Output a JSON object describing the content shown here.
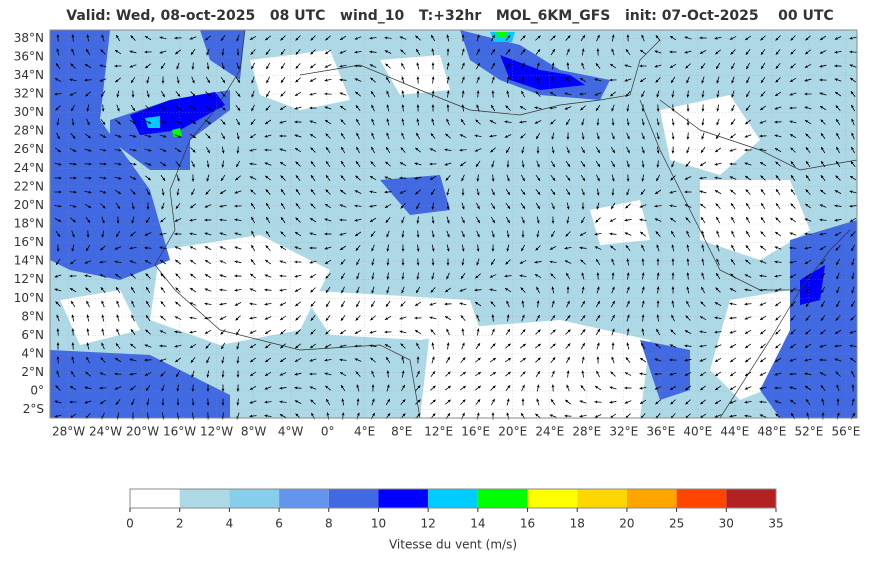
{
  "header": {
    "title": "Valid: Wed, 08-oct-2025   08 UTC   wind_10   T:+32hr   MOL_6KM_GFS   init: 07-Oct-2025    00 UTC"
  },
  "map": {
    "lonlim": [
      -30,
      57.2
    ],
    "latlim": [
      -2.9,
      38.9
    ],
    "lat_ticks": [
      {
        "value": 38,
        "label": "38°N"
      },
      {
        "value": 36,
        "label": "36°N"
      },
      {
        "value": 34,
        "label": "34°N"
      },
      {
        "value": 32,
        "label": "32°N"
      },
      {
        "value": 30,
        "label": "30°N"
      },
      {
        "value": 28,
        "label": "28°N"
      },
      {
        "value": 26,
        "label": "26°N"
      },
      {
        "value": 24,
        "label": "24°N"
      },
      {
        "value": 22,
        "label": "22°N"
      },
      {
        "value": 20,
        "label": "20°N"
      },
      {
        "value": 18,
        "label": "18°N"
      },
      {
        "value": 16,
        "label": "16°N"
      },
      {
        "value": 14,
        "label": "14°N"
      },
      {
        "value": 12,
        "label": "12°N"
      },
      {
        "value": 10,
        "label": "10°N"
      },
      {
        "value": 8,
        "label": "8°N"
      },
      {
        "value": 6,
        "label": "6°N"
      },
      {
        "value": 4,
        "label": "4°N"
      },
      {
        "value": 2,
        "label": "2°N"
      },
      {
        "value": 0,
        "label": "0°"
      },
      {
        "value": -2,
        "label": "2°S"
      }
    ],
    "lon_ticks": [
      {
        "value": -28,
        "label": "28°W"
      },
      {
        "value": -24,
        "label": "24°W"
      },
      {
        "value": -20,
        "label": "20°W"
      },
      {
        "value": -16,
        "label": "16°W"
      },
      {
        "value": -12,
        "label": "12°W"
      },
      {
        "value": -8,
        "label": "8°W"
      },
      {
        "value": -4,
        "label": "4°W"
      },
      {
        "value": 0,
        "label": "0°"
      },
      {
        "value": 4,
        "label": "4°E"
      },
      {
        "value": 8,
        "label": "8°E"
      },
      {
        "value": 12,
        "label": "12°E"
      },
      {
        "value": 16,
        "label": "16°E"
      },
      {
        "value": 20,
        "label": "20°E"
      },
      {
        "value": 24,
        "label": "24°E"
      },
      {
        "value": 28,
        "label": "28°E"
      },
      {
        "value": 32,
        "label": "32°E"
      },
      {
        "value": 36,
        "label": "36°E"
      },
      {
        "value": 40,
        "label": "40°E"
      },
      {
        "value": 44,
        "label": "44°E"
      },
      {
        "value": 48,
        "label": "48°E"
      },
      {
        "value": 52,
        "label": "52°E"
      },
      {
        "value": 56,
        "label": "56°E"
      }
    ]
  },
  "colorbar": {
    "label": "Vitesse du vent (m/s)",
    "ticks": [
      0,
      2,
      4,
      6,
      8,
      10,
      12,
      14,
      16,
      18,
      20,
      25,
      30,
      35
    ],
    "colors": [
      "#ffffff",
      "#add8e6",
      "#87ceeb",
      "#6495ed",
      "#4169e1",
      "#0000ff",
      "#00ccff",
      "#00ff00",
      "#ffff00",
      "#ffd700",
      "#ffa500",
      "#ff4500",
      "#b22222"
    ]
  }
}
